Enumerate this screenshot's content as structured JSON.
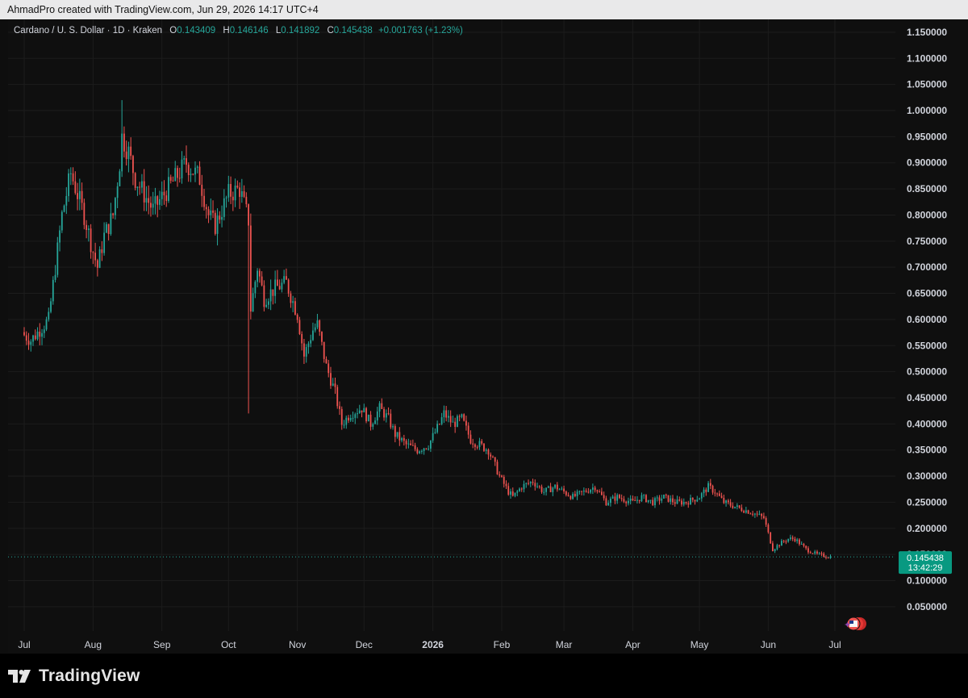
{
  "header": {
    "attribution": "AhmadPro created with TradingView.com, Jun 29, 2026 14:17 UTC+4"
  },
  "legend": {
    "symbol": "Cardano / U. S. Dollar · 1D · Kraken",
    "o_label": "O",
    "o_value": "0.143409",
    "h_label": "H",
    "h_value": "0.146146",
    "l_label": "L",
    "l_value": "0.141892",
    "c_label": "C",
    "c_value": "0.145438",
    "change": "+0.001763 (+1.23%)"
  },
  "price_tag": {
    "price": "0.145438",
    "countdown": "13:42:29"
  },
  "footer": {
    "brand": "TradingView"
  },
  "colors": {
    "up": "#26a69a",
    "down": "#ef5350",
    "background": "#0f0f0f",
    "grid": "#1c1c1c",
    "axis_text": "#d1d4dc"
  },
  "chart_data": {
    "type": "candlestick",
    "interval": "1D",
    "ylim": [
      0.01,
      1.175
    ],
    "y_ticks": [
      "0.050000",
      "0.100000",
      "0.150000",
      "0.200000",
      "0.250000",
      "0.300000",
      "0.350000",
      "0.400000",
      "0.450000",
      "0.500000",
      "0.550000",
      "0.600000",
      "0.650000",
      "0.700000",
      "0.750000",
      "0.800000",
      "0.850000",
      "0.900000",
      "0.950000",
      "1.000000",
      "1.050000",
      "1.100000",
      "1.150000"
    ],
    "x_ticks": [
      "Jul",
      "Aug",
      "Sep",
      "Oct",
      "Nov",
      "Dec",
      "2026",
      "Feb",
      "Mar",
      "Apr",
      "May",
      "Jun",
      "Jul"
    ],
    "grid": true,
    "last_price": 0.145438,
    "anchors": [
      {
        "date": "2025-07-01",
        "close": 0.57
      },
      {
        "date": "2025-07-04",
        "close": 0.56
      },
      {
        "date": "2025-07-08",
        "close": 0.58
      },
      {
        "date": "2025-07-12",
        "close": 0.6
      },
      {
        "date": "2025-07-15",
        "close": 0.7
      },
      {
        "date": "2025-07-18",
        "close": 0.8
      },
      {
        "date": "2025-07-22",
        "close": 0.88
      },
      {
        "date": "2025-07-25",
        "close": 0.84
      },
      {
        "date": "2025-07-28",
        "close": 0.8
      },
      {
        "date": "2025-08-01",
        "close": 0.73
      },
      {
        "date": "2025-08-03",
        "close": 0.7
      },
      {
        "date": "2025-08-06",
        "close": 0.76
      },
      {
        "date": "2025-08-10",
        "close": 0.8
      },
      {
        "date": "2025-08-13",
        "close": 0.9
      },
      {
        "date": "2025-08-14",
        "close": 0.95
      },
      {
        "date": "2025-08-17",
        "close": 0.92
      },
      {
        "date": "2025-08-20",
        "close": 0.87
      },
      {
        "date": "2025-08-24",
        "close": 0.84
      },
      {
        "date": "2025-08-28",
        "close": 0.81
      },
      {
        "date": "2025-09-02",
        "close": 0.84
      },
      {
        "date": "2025-09-07",
        "close": 0.87
      },
      {
        "date": "2025-09-12",
        "close": 0.9
      },
      {
        "date": "2025-09-14",
        "close": 0.89
      },
      {
        "date": "2025-09-18",
        "close": 0.87
      },
      {
        "date": "2025-09-22",
        "close": 0.8
      },
      {
        "date": "2025-09-25",
        "close": 0.78
      },
      {
        "date": "2025-09-28",
        "close": 0.81
      },
      {
        "date": "2025-10-01",
        "close": 0.84
      },
      {
        "date": "2025-10-06",
        "close": 0.85
      },
      {
        "date": "2025-10-10",
        "close": 0.79
      },
      {
        "date": "2025-10-11",
        "close": 0.62
      },
      {
        "date": "2025-10-14",
        "close": 0.7
      },
      {
        "date": "2025-10-17",
        "close": 0.64
      },
      {
        "date": "2025-10-22",
        "close": 0.66
      },
      {
        "date": "2025-10-27",
        "close": 0.67
      },
      {
        "date": "2025-11-01",
        "close": 0.61
      },
      {
        "date": "2025-11-04",
        "close": 0.53
      },
      {
        "date": "2025-11-08",
        "close": 0.58
      },
      {
        "date": "2025-11-10",
        "close": 0.59
      },
      {
        "date": "2025-11-14",
        "close": 0.51
      },
      {
        "date": "2025-11-18",
        "close": 0.46
      },
      {
        "date": "2025-11-21",
        "close": 0.4
      },
      {
        "date": "2025-11-25",
        "close": 0.42
      },
      {
        "date": "2025-11-30",
        "close": 0.43
      },
      {
        "date": "2025-12-04",
        "close": 0.4
      },
      {
        "date": "2025-12-08",
        "close": 0.43
      },
      {
        "date": "2025-12-12",
        "close": 0.41
      },
      {
        "date": "2025-12-15",
        "close": 0.38
      },
      {
        "date": "2025-12-20",
        "close": 0.36
      },
      {
        "date": "2025-12-25",
        "close": 0.35
      },
      {
        "date": "2025-12-30",
        "close": 0.36
      },
      {
        "date": "2026-01-04",
        "close": 0.4
      },
      {
        "date": "2026-01-06",
        "close": 0.42
      },
      {
        "date": "2026-01-10",
        "close": 0.4
      },
      {
        "date": "2026-01-14",
        "close": 0.41
      },
      {
        "date": "2026-01-18",
        "close": 0.37
      },
      {
        "date": "2026-01-22",
        "close": 0.36
      },
      {
        "date": "2026-01-26",
        "close": 0.35
      },
      {
        "date": "2026-01-31",
        "close": 0.3
      },
      {
        "date": "2026-02-04",
        "close": 0.27
      },
      {
        "date": "2026-02-06",
        "close": 0.26
      },
      {
        "date": "2026-02-10",
        "close": 0.28
      },
      {
        "date": "2026-02-15",
        "close": 0.29
      },
      {
        "date": "2026-02-20",
        "close": 0.27
      },
      {
        "date": "2026-02-25",
        "close": 0.28
      },
      {
        "date": "2026-03-01",
        "close": 0.27
      },
      {
        "date": "2026-03-05",
        "close": 0.26
      },
      {
        "date": "2026-03-10",
        "close": 0.27
      },
      {
        "date": "2026-03-15",
        "close": 0.28
      },
      {
        "date": "2026-03-20",
        "close": 0.25
      },
      {
        "date": "2026-03-25",
        "close": 0.26
      },
      {
        "date": "2026-04-01",
        "close": 0.25
      },
      {
        "date": "2026-04-05",
        "close": 0.26
      },
      {
        "date": "2026-04-10",
        "close": 0.25
      },
      {
        "date": "2026-04-15",
        "close": 0.26
      },
      {
        "date": "2026-04-20",
        "close": 0.25
      },
      {
        "date": "2026-04-25",
        "close": 0.25
      },
      {
        "date": "2026-05-01",
        "close": 0.26
      },
      {
        "date": "2026-05-05",
        "close": 0.28
      },
      {
        "date": "2026-05-08",
        "close": 0.27
      },
      {
        "date": "2026-05-12",
        "close": 0.25
      },
      {
        "date": "2026-05-18",
        "close": 0.24
      },
      {
        "date": "2026-05-25",
        "close": 0.23
      },
      {
        "date": "2026-05-30",
        "close": 0.22
      },
      {
        "date": "2026-06-03",
        "close": 0.16
      },
      {
        "date": "2026-06-06",
        "close": 0.17
      },
      {
        "date": "2026-06-10",
        "close": 0.18
      },
      {
        "date": "2026-06-13",
        "close": 0.18
      },
      {
        "date": "2026-06-18",
        "close": 0.16
      },
      {
        "date": "2026-06-23",
        "close": 0.15
      },
      {
        "date": "2026-06-29",
        "close": 0.145438
      }
    ]
  }
}
